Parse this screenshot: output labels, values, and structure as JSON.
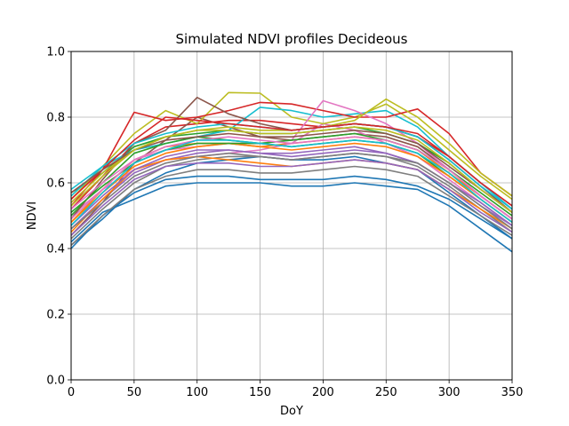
{
  "chart_data": {
    "type": "line",
    "title": "Simulated NDVI profiles Decideous",
    "xlabel": "DoY",
    "ylabel": "NDVI",
    "xlim": [
      0,
      350
    ],
    "ylim": [
      0.0,
      1.0
    ],
    "x_ticks": [
      0,
      50,
      100,
      150,
      200,
      250,
      300,
      350
    ],
    "y_ticks": [
      0.0,
      0.2,
      0.4,
      0.6,
      0.8,
      1.0
    ],
    "x_tick_labels": [
      "0",
      "50",
      "100",
      "150",
      "200",
      "250",
      "300",
      "350"
    ],
    "y_tick_labels": [
      "0.0",
      "0.2",
      "0.4",
      "0.6",
      "0.8",
      "1.0"
    ],
    "grid": true,
    "legend": "none",
    "colors": [
      "#1f77b4",
      "#ff7f0e",
      "#2ca02c",
      "#d62728",
      "#9467bd",
      "#8c564b",
      "#e377c2",
      "#7f7f7f",
      "#bcbd22",
      "#17becf"
    ],
    "x": [
      0,
      25,
      50,
      75,
      100,
      125,
      150,
      175,
      200,
      225,
      250,
      275,
      300,
      325,
      350
    ],
    "series": [
      {
        "values": [
          0.41,
          0.49,
          0.58,
          0.63,
          0.66,
          0.67,
          0.68,
          0.67,
          0.67,
          0.68,
          0.66,
          0.64,
          0.57,
          0.5,
          0.43
        ]
      },
      {
        "values": [
          0.48,
          0.58,
          0.67,
          0.71,
          0.72,
          0.72,
          0.71,
          0.72,
          0.73,
          0.74,
          0.73,
          0.7,
          0.63,
          0.56,
          0.49
        ]
      },
      {
        "values": [
          0.57,
          0.63,
          0.71,
          0.74,
          0.75,
          0.76,
          0.75,
          0.75,
          0.76,
          0.77,
          0.75,
          0.72,
          0.66,
          0.58,
          0.51
        ]
      },
      {
        "values": [
          0.52,
          0.62,
          0.72,
          0.77,
          0.78,
          0.79,
          0.79,
          0.78,
          0.77,
          0.78,
          0.77,
          0.74,
          0.68,
          0.6,
          0.53
        ]
      },
      {
        "values": [
          0.46,
          0.55,
          0.63,
          0.67,
          0.69,
          0.7,
          0.69,
          0.69,
          0.7,
          0.71,
          0.69,
          0.66,
          0.6,
          0.53,
          0.47
        ]
      },
      {
        "values": [
          0.44,
          0.54,
          0.66,
          0.73,
          0.8,
          0.77,
          0.74,
          0.73,
          0.74,
          0.75,
          0.74,
          0.71,
          0.64,
          0.56,
          0.49
        ]
      },
      {
        "values": [
          0.5,
          0.58,
          0.64,
          0.67,
          0.68,
          0.69,
          0.7,
          0.72,
          0.78,
          0.76,
          0.72,
          0.68,
          0.61,
          0.54,
          0.47
        ]
      },
      {
        "values": [
          0.43,
          0.52,
          0.6,
          0.65,
          0.67,
          0.68,
          0.68,
          0.67,
          0.68,
          0.69,
          0.68,
          0.65,
          0.59,
          0.52,
          0.45
        ]
      },
      {
        "values": [
          0.55,
          0.65,
          0.75,
          0.82,
          0.78,
          0.875,
          0.873,
          0.8,
          0.78,
          0.8,
          0.84,
          0.78,
          0.7,
          0.62,
          0.55
        ]
      },
      {
        "values": [
          0.58,
          0.65,
          0.7,
          0.72,
          0.74,
          0.76,
          0.83,
          0.82,
          0.8,
          0.81,
          0.82,
          0.77,
          0.68,
          0.6,
          0.52
        ]
      },
      {
        "values": [
          0.4,
          0.5,
          0.57,
          0.61,
          0.62,
          0.62,
          0.61,
          0.61,
          0.61,
          0.62,
          0.61,
          0.59,
          0.55,
          0.49,
          0.43
        ]
      },
      {
        "values": [
          0.45,
          0.55,
          0.64,
          0.67,
          0.68,
          0.67,
          0.66,
          0.65,
          0.66,
          0.67,
          0.66,
          0.64,
          0.58,
          0.52,
          0.46
        ]
      },
      {
        "values": [
          0.5,
          0.6,
          0.69,
          0.72,
          0.74,
          0.73,
          0.72,
          0.71,
          0.72,
          0.73,
          0.72,
          0.69,
          0.62,
          0.55,
          0.48
        ]
      },
      {
        "values": [
          0.53,
          0.64,
          0.815,
          0.79,
          0.8,
          0.82,
          0.845,
          0.84,
          0.82,
          0.8,
          0.8,
          0.825,
          0.75,
          0.63,
          0.56
        ]
      },
      {
        "values": [
          0.47,
          0.56,
          0.64,
          0.68,
          0.7,
          0.7,
          0.69,
          0.68,
          0.69,
          0.7,
          0.69,
          0.66,
          0.6,
          0.54,
          0.47
        ]
      },
      {
        "values": [
          0.49,
          0.61,
          0.72,
          0.76,
          0.86,
          0.81,
          0.78,
          0.76,
          0.77,
          0.78,
          0.77,
          0.74,
          0.67,
          0.59,
          0.51
        ]
      },
      {
        "values": [
          0.52,
          0.6,
          0.67,
          0.7,
          0.71,
          0.72,
          0.72,
          0.73,
          0.85,
          0.82,
          0.78,
          0.72,
          0.64,
          0.56,
          0.49
        ]
      },
      {
        "values": [
          0.46,
          0.54,
          0.62,
          0.66,
          0.68,
          0.69,
          0.68,
          0.67,
          0.68,
          0.69,
          0.68,
          0.66,
          0.6,
          0.53,
          0.46
        ]
      },
      {
        "values": [
          0.54,
          0.63,
          0.7,
          0.74,
          0.76,
          0.77,
          0.76,
          0.76,
          0.77,
          0.79,
          0.855,
          0.8,
          0.72,
          0.63,
          0.56
        ]
      },
      {
        "values": [
          0.56,
          0.65,
          0.72,
          0.75,
          0.77,
          0.78,
          0.77,
          0.76,
          0.77,
          0.78,
          0.77,
          0.74,
          0.67,
          0.59,
          0.52
        ]
      },
      {
        "values": [
          0.42,
          0.51,
          0.55,
          0.59,
          0.6,
          0.6,
          0.6,
          0.59,
          0.59,
          0.6,
          0.59,
          0.58,
          0.53,
          0.46,
          0.39
        ]
      },
      {
        "values": [
          0.48,
          0.57,
          0.65,
          0.69,
          0.71,
          0.72,
          0.71,
          0.7,
          0.71,
          0.72,
          0.71,
          0.68,
          0.62,
          0.55,
          0.48
        ]
      },
      {
        "values": [
          0.51,
          0.59,
          0.66,
          0.7,
          0.72,
          0.72,
          0.72,
          0.73,
          0.74,
          0.75,
          0.73,
          0.7,
          0.64,
          0.57,
          0.5
        ]
      },
      {
        "values": [
          0.55,
          0.64,
          0.73,
          0.8,
          0.79,
          0.78,
          0.77,
          0.76,
          0.77,
          0.78,
          0.77,
          0.75,
          0.68,
          0.6,
          0.53
        ]
      },
      {
        "values": [
          0.44,
          0.53,
          0.61,
          0.65,
          0.66,
          0.66,
          0.65,
          0.65,
          0.66,
          0.67,
          0.66,
          0.64,
          0.58,
          0.51,
          0.45
        ]
      },
      {
        "values": [
          0.57,
          0.64,
          0.7,
          0.73,
          0.74,
          0.75,
          0.74,
          0.74,
          0.75,
          0.76,
          0.75,
          0.72,
          0.65,
          0.58,
          0.51
        ]
      },
      {
        "values": [
          0.49,
          0.58,
          0.67,
          0.71,
          0.73,
          0.74,
          0.73,
          0.72,
          0.73,
          0.74,
          0.73,
          0.7,
          0.64,
          0.56,
          0.49
        ]
      },
      {
        "values": [
          0.41,
          0.5,
          0.58,
          0.62,
          0.64,
          0.64,
          0.63,
          0.63,
          0.64,
          0.65,
          0.64,
          0.62,
          0.56,
          0.5,
          0.44
        ]
      },
      {
        "values": [
          0.53,
          0.62,
          0.7,
          0.74,
          0.76,
          0.76,
          0.75,
          0.75,
          0.76,
          0.77,
          0.76,
          0.73,
          0.66,
          0.58,
          0.51
        ]
      },
      {
        "values": [
          0.47,
          0.57,
          0.66,
          0.7,
          0.73,
          0.73,
          0.72,
          0.71,
          0.72,
          0.73,
          0.72,
          0.69,
          0.63,
          0.55,
          0.48
        ]
      }
    ]
  }
}
